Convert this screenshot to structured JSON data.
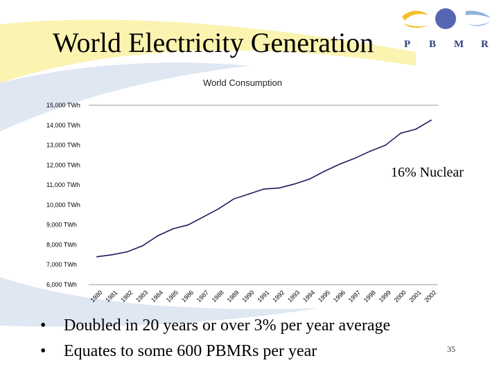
{
  "slide": {
    "title": "World Electricity Generation",
    "annotation": "16% Nuclear",
    "bullets": [
      "Doubled in 20 years or over 3% per year average",
      "Equates to some 600 PBMRs per year"
    ],
    "bullet_marker": "•",
    "page_number": "35"
  },
  "logo": {
    "letters": [
      "P",
      "B",
      "M",
      "R"
    ]
  },
  "colors": {
    "line": "#1a1a5e",
    "axis": "#9a9a9a",
    "swoosh_yellow": "#fbf3b0",
    "swoosh_blue": "#dfe7f3",
    "logo_ball": "#5566b3",
    "logo_arc_yellow": "#f2c12e",
    "logo_arc_blue": "#8fb3dc"
  },
  "chart_data": {
    "type": "line",
    "title": "World Consumption",
    "xlabel": "",
    "ylabel": "",
    "ylim": [
      6000,
      15000
    ],
    "yticks": [
      6000,
      7000,
      8000,
      9000,
      10000,
      11000,
      12000,
      13000,
      14000,
      15000
    ],
    "ytick_labels": [
      "6,000 TWh",
      "7,000 TWh",
      "8,000 TWh",
      "9,000 TWh",
      "10,000 TWh",
      "11,000 TWh",
      "12,000 TWh",
      "13,000 TWh",
      "14,000 TWh",
      "15,000 TWh"
    ],
    "categories": [
      "1980",
      "1981",
      "1982",
      "1983",
      "1984",
      "1985",
      "1986",
      "1987",
      "1988",
      "1989",
      "1990",
      "1991",
      "1992",
      "1993",
      "1994",
      "1995",
      "1996",
      "1997",
      "1998",
      "1999",
      "2000",
      "2001",
      "2002"
    ],
    "series": [
      {
        "name": "World Consumption",
        "values": [
          7400,
          7500,
          7650,
          7950,
          8450,
          8800,
          9000,
          9400,
          9800,
          10300,
          10550,
          10800,
          10850,
          11050,
          11300,
          11700,
          12050,
          12350,
          12700,
          13000,
          13600,
          13800,
          14250
        ]
      }
    ],
    "grid": false
  }
}
